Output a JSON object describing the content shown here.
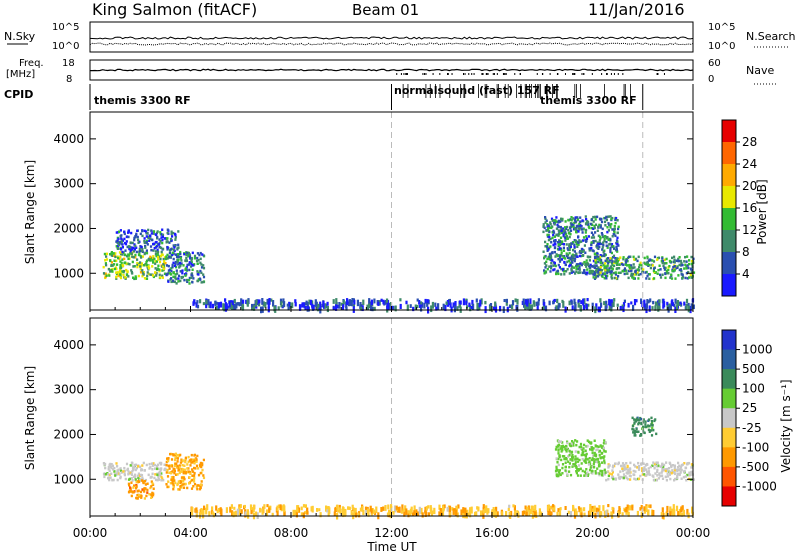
{
  "header": {
    "station": "King Salmon (fitACF)",
    "beam": "Beam 01",
    "date": "11/Jan/2016"
  },
  "strips": {
    "nsky_label": "N.Sky",
    "nsearch_label": "N.Search",
    "nsky_ticks": [
      "10^5",
      "10^0"
    ],
    "nsearch_ticks": [
      "10^5",
      "10^0"
    ],
    "freq_label_line1": "Freq.",
    "freq_label_line2": "[MHz]",
    "freq_ticks": [
      "18",
      "8"
    ],
    "nave_label": "Nave",
    "nave_ticks": [
      "60",
      "0"
    ],
    "cpid_label": "CPID"
  },
  "cpid_modes": [
    {
      "label": "themis 3300 RF",
      "start_hour": 0.0
    },
    {
      "label": "normalsound (fast) 157 RF",
      "start_hour": 12.0
    },
    {
      "label": "themis 3300 RF",
      "start_hour": 22.0
    }
  ],
  "axes": {
    "x_ticks": [
      "00:00",
      "04:00",
      "08:00",
      "12:00",
      "16:00",
      "20:00",
      "00:00"
    ],
    "x_label": "Time UT",
    "y_label": "Slant Range [km]",
    "y_ticks": [
      "1000",
      "2000",
      "3000",
      "4000"
    ]
  },
  "colorbars": {
    "power": {
      "label": "Power [dB]",
      "ticks": [
        "4",
        "8",
        "12",
        "16",
        "20",
        "24",
        "28"
      ],
      "colors": [
        "#1a1aff",
        "#2a4fb0",
        "#3f8a6a",
        "#33bb33",
        "#e8e800",
        "#ffaa00",
        "#ff6600",
        "#e60000"
      ]
    },
    "velocity": {
      "label": "Velocity [m s⁻¹]",
      "ticks": [
        "1000",
        "500",
        "100",
        "25",
        "-25",
        "-100",
        "-500",
        "-1000"
      ],
      "colors": [
        "#2233cc",
        "#2a5fa0",
        "#3a8a5a",
        "#66cc33",
        "#c8c8c8",
        "#ffcc33",
        "#ff9900",
        "#ff5500",
        "#e60000"
      ]
    }
  },
  "chart_data": {
    "type": "heatmap",
    "title": "King Salmon (fitACF) Beam 01 11/Jan/2016",
    "xlabel": "Time UT",
    "ylabel": "Slant Range [km]",
    "xlim": [
      0,
      24
    ],
    "ylim": [
      180,
      4600
    ],
    "marker_hours": [
      12,
      22
    ],
    "panels": [
      {
        "name": "Power [dB]",
        "clim": [
          0,
          30
        ],
        "regions": [
          {
            "t": [
              0.5,
              3.0
            ],
            "r": [
              900,
              1500
            ],
            "value": 14
          },
          {
            "t": [
              3.0,
              4.5
            ],
            "r": [
              800,
              1500
            ],
            "value": 8
          },
          {
            "t": [
              1.0,
              3.5
            ],
            "r": [
              1500,
              2000
            ],
            "value": 6
          },
          {
            "t": [
              4.0,
              24.0
            ],
            "r": [
              250,
              450
            ],
            "value": 5
          },
          {
            "t": [
              18.0,
              21.0
            ],
            "r": [
              1000,
              2300
            ],
            "value": 8
          },
          {
            "t": [
              20.0,
              24.0
            ],
            "r": [
              900,
              1400
            ],
            "value": 10
          }
        ]
      },
      {
        "name": "Velocity [m s-1]",
        "clim": [
          -1000,
          1000
        ],
        "regions": [
          {
            "t": [
              0.5,
              3.0
            ],
            "r": [
              1000,
              1400
            ],
            "value": 0
          },
          {
            "t": [
              3.0,
              4.5
            ],
            "r": [
              800,
              1600
            ],
            "value": -120
          },
          {
            "t": [
              1.5,
              2.5
            ],
            "r": [
              600,
              1000
            ],
            "value": -300
          },
          {
            "t": [
              4.0,
              24.0
            ],
            "r": [
              250,
              450
            ],
            "value": -80
          },
          {
            "t": [
              18.5,
              20.5
            ],
            "r": [
              1100,
              1900
            ],
            "value": 50
          },
          {
            "t": [
              20.5,
              24.0
            ],
            "r": [
              1000,
              1400
            ],
            "value": 0
          },
          {
            "t": [
              21.5,
              22.5
            ],
            "r": [
              2000,
              2400
            ],
            "value": 300
          }
        ]
      }
    ]
  }
}
